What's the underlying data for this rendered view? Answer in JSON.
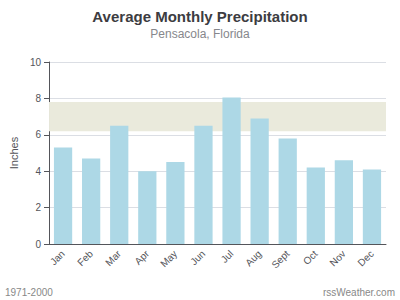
{
  "chart_data": {
    "type": "bar",
    "title": "Average Monthly Precipitation",
    "subtitle": "Pensacola, Florida",
    "ylabel": "Inches",
    "categories": [
      "Jan",
      "Feb",
      "Mar",
      "Apr",
      "May",
      "Jun",
      "Jul",
      "Aug",
      "Sept",
      "Oct",
      "Nov",
      "Dec"
    ],
    "values": [
      5.3,
      4.7,
      6.5,
      4.0,
      4.5,
      6.5,
      8.05,
      6.9,
      5.8,
      4.2,
      4.6,
      4.1
    ],
    "color": "#ADD8E6",
    "band": {
      "from": 6.2,
      "to": 7.8,
      "color": "#EAEADC"
    },
    "ylim": [
      0,
      10
    ],
    "yticks": [
      0,
      2,
      4,
      6,
      8,
      10
    ],
    "grid": true,
    "annotations": [
      "1971-2000",
      "rssWeather.com"
    ]
  }
}
